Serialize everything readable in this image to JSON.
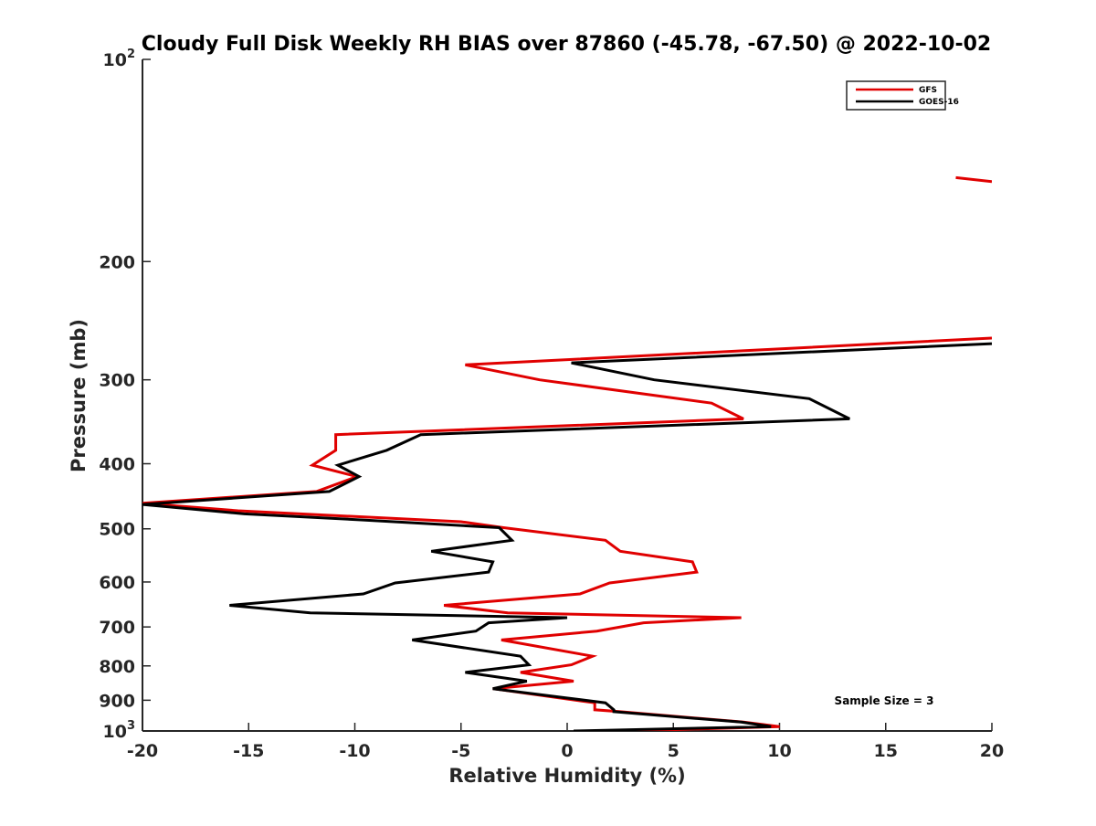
{
  "chart_data": {
    "type": "line",
    "title": "Cloudy Full Disk Weekly RH BIAS over 87860 (-45.78, -67.50) @ 2022-10-02",
    "xlabel": "Relative Humidity (%)",
    "ylabel": "Pressure (mb)",
    "xlim": [
      -20,
      20
    ],
    "ylim": [
      100,
      1000
    ],
    "y_scale": "log",
    "y_reversed": true,
    "grid": false,
    "legend_position": "top-right",
    "x_ticks": [
      -20,
      -15,
      -10,
      -5,
      0,
      5,
      10,
      15,
      20
    ],
    "x_tick_labels": [
      "-20",
      "-15",
      "-10",
      "-5",
      "0",
      "5",
      "10",
      "15",
      "20"
    ],
    "y_ticks": [
      100,
      200,
      300,
      400,
      500,
      600,
      700,
      800,
      900,
      1000
    ],
    "y_tick_labels": [
      "10^2",
      "200",
      "300",
      "400",
      "500",
      "600",
      "700",
      "800",
      "900",
      "10^3"
    ],
    "series": [
      {
        "name": "GFS",
        "color": "#e00000",
        "segments": [
          [
            [
              18.3,
              150
            ],
            [
              20,
              152
            ]
          ],
          [
            [
              20,
              260
            ],
            [
              -4.8,
              285
            ],
            [
              -1.3,
              300
            ],
            [
              6.8,
              325
            ],
            [
              8.3,
              343
            ],
            [
              -10.9,
              362
            ],
            [
              -10.9,
              382
            ],
            [
              -12.0,
              402
            ],
            [
              -9.9,
              418
            ],
            [
              -11.8,
              440
            ],
            [
              -20,
              458
            ],
            [
              -15.5,
              470
            ],
            [
              -5.0,
              488
            ],
            [
              -3.0,
              498
            ],
            [
              1.8,
              520
            ],
            [
              2.5,
              540
            ],
            [
              5.9,
              560
            ],
            [
              6.1,
              580
            ],
            [
              2.0,
              602
            ],
            [
              0.6,
              625
            ],
            [
              -5.8,
              650
            ],
            [
              -2.8,
              667
            ],
            [
              8.2,
              678
            ],
            [
              3.6,
              690
            ],
            [
              1.4,
              710
            ],
            [
              -3.1,
              732
            ],
            [
              1.2,
              774
            ],
            [
              0.2,
              797
            ],
            [
              -2.2,
              818
            ],
            [
              0.3,
              843
            ],
            [
              -3.5,
              865
            ],
            [
              1.3,
              908
            ],
            [
              1.3,
              930
            ],
            [
              2.5,
              936
            ],
            [
              8.3,
              970
            ],
            [
              10.0,
              985
            ],
            [
              2.8,
              1000
            ]
          ]
        ]
      },
      {
        "name": "GOES-16",
        "color": "#000000",
        "segments": [
          [
            [
              20,
              265
            ],
            [
              0.2,
              283
            ],
            [
              4.1,
              300
            ],
            [
              11.4,
              320
            ],
            [
              13.3,
              343
            ],
            [
              -6.9,
              362
            ],
            [
              -8.5,
              382
            ],
            [
              -10.8,
              402
            ],
            [
              -9.8,
              418
            ],
            [
              -11.2,
              440
            ],
            [
              -20,
              460
            ],
            [
              -15.2,
              475
            ],
            [
              -9.7,
              485
            ],
            [
              -3.2,
              498
            ],
            [
              -2.6,
              520
            ],
            [
              -6.4,
              540
            ],
            [
              -3.5,
              560
            ],
            [
              -3.7,
              580
            ],
            [
              -8.1,
              602
            ],
            [
              -9.6,
              625
            ],
            [
              -15.9,
              650
            ],
            [
              -12.1,
              667
            ],
            [
              0,
              678
            ],
            [
              -3.7,
              690
            ],
            [
              -4.3,
              710
            ],
            [
              -7.3,
              732
            ],
            [
              -2.2,
              774
            ],
            [
              -1.8,
              797
            ],
            [
              -4.8,
              818
            ],
            [
              -1.9,
              843
            ],
            [
              -3.5,
              865
            ],
            [
              1.8,
              908
            ],
            [
              2.2,
              930
            ],
            [
              2.2,
              936
            ],
            [
              8.2,
              970
            ],
            [
              9.6,
              985
            ],
            [
              0.3,
              1000
            ]
          ]
        ]
      }
    ],
    "annotation": "Sample Size = 3"
  }
}
